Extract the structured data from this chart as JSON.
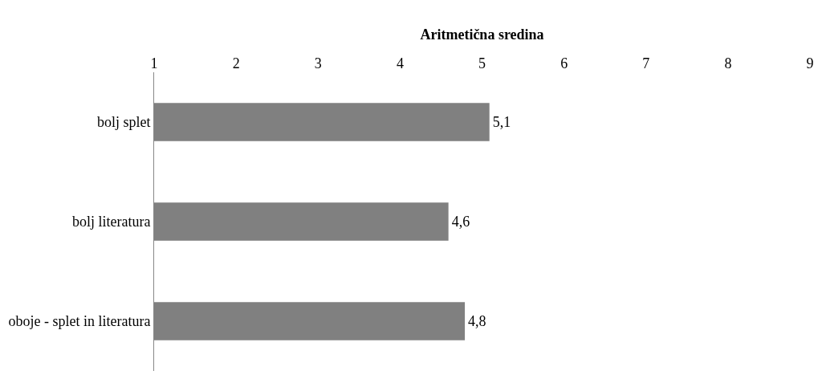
{
  "chart_data": {
    "type": "bar",
    "orientation": "horizontal",
    "xlabel": "Aritmetična sredina",
    "categories": [
      "bolj splet",
      "bolj literatura",
      "oboje - splet in literatura"
    ],
    "values": [
      5.1,
      4.6,
      4.8
    ],
    "value_labels": [
      "5,1",
      "4,6",
      "4,8"
    ],
    "color": "#808080",
    "xlim": [
      1,
      9
    ],
    "xticks": [
      1,
      2,
      3,
      4,
      5,
      6,
      7,
      8,
      9
    ]
  }
}
